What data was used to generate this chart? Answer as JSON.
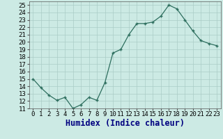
{
  "x": [
    0,
    1,
    2,
    3,
    4,
    5,
    6,
    7,
    8,
    9,
    10,
    11,
    12,
    13,
    14,
    15,
    16,
    17,
    18,
    19,
    20,
    21,
    22,
    23
  ],
  "y": [
    15.0,
    13.8,
    12.8,
    12.1,
    12.5,
    11.0,
    11.5,
    12.5,
    12.1,
    14.5,
    18.5,
    19.0,
    21.0,
    22.5,
    22.5,
    22.7,
    23.5,
    25.0,
    24.5,
    23.0,
    21.5,
    20.2,
    19.8,
    19.5
  ],
  "line_color": "#2d6e5e",
  "marker_color": "#2d6e5e",
  "bg_color": "#cceae4",
  "grid_color": "#aaccc6",
  "xlabel": "Humidex (Indice chaleur)",
  "xlim": [
    -0.5,
    23.5
  ],
  "ylim": [
    11,
    25.5
  ],
  "yticks": [
    11,
    12,
    13,
    14,
    15,
    16,
    17,
    18,
    19,
    20,
    21,
    22,
    23,
    24,
    25
  ],
  "xticks": [
    0,
    1,
    2,
    3,
    4,
    5,
    6,
    7,
    8,
    9,
    10,
    11,
    12,
    13,
    14,
    15,
    16,
    17,
    18,
    19,
    20,
    21,
    22,
    23
  ],
  "xlabel_fontsize": 8.5,
  "tick_fontsize": 6.5
}
